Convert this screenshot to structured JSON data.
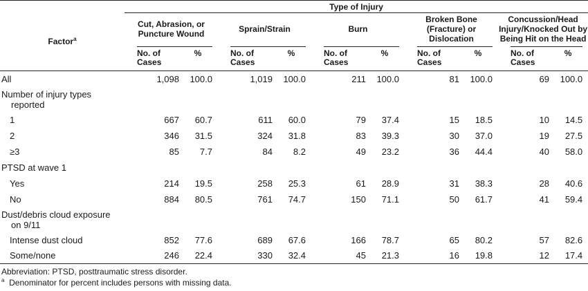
{
  "header": {
    "spanner": "Type of Injury",
    "factor_label": "Factor",
    "factor_note": "a",
    "groups": [
      {
        "line1": "Cut, Abrasion, or",
        "line2": "Puncture Wound"
      },
      {
        "line1": "Sprain/Strain",
        "line2": ""
      },
      {
        "line1": "Burn",
        "line2": ""
      },
      {
        "line1": "Broken Bone",
        "line2": "(Fracture) or",
        "line3": "Dislocation"
      },
      {
        "line1": "Concussion/Head",
        "line2": "Injury/Knocked Out by",
        "line3": "Being Hit on the Head"
      }
    ],
    "cases_line1": "No. of",
    "cases_line2": "Cases",
    "pct": "%"
  },
  "rows": [
    {
      "label": "All",
      "vals": [
        "1,098",
        "100.0",
        "1,019",
        "100.0",
        "211",
        "100.0",
        "81",
        "100.0",
        "69",
        "100.0"
      ]
    },
    {
      "label": "Number of injury types",
      "label2": "reported",
      "section": true
    },
    {
      "label": "1",
      "vals": [
        "667",
        "60.7",
        "611",
        "60.0",
        "79",
        "37.4",
        "15",
        "18.5",
        "10",
        "14.5"
      ]
    },
    {
      "label": "2",
      "vals": [
        "346",
        "31.5",
        "324",
        "31.8",
        "83",
        "39.3",
        "30",
        "37.0",
        "19",
        "27.5"
      ]
    },
    {
      "label": "≥3",
      "vals": [
        "85",
        "7.7",
        "84",
        "8.2",
        "49",
        "23.2",
        "36",
        "44.4",
        "40",
        "58.0"
      ]
    },
    {
      "label": "PTSD at wave 1",
      "section": true
    },
    {
      "label": "Yes",
      "vals": [
        "214",
        "19.5",
        "258",
        "25.3",
        "61",
        "28.9",
        "31",
        "38.3",
        "28",
        "40.6"
      ]
    },
    {
      "label": "No",
      "vals": [
        "884",
        "80.5",
        "761",
        "74.7",
        "150",
        "71.1",
        "50",
        "61.7",
        "41",
        "59.4"
      ]
    },
    {
      "label": "Dust/debris cloud exposure",
      "label2": "on 9/11",
      "section": true
    },
    {
      "label": "Intense dust cloud",
      "vals": [
        "852",
        "77.6",
        "689",
        "67.6",
        "166",
        "78.7",
        "65",
        "80.2",
        "57",
        "82.6"
      ]
    },
    {
      "label": "Some/none",
      "vals": [
        "246",
        "22.4",
        "330",
        "32.4",
        "45",
        "21.3",
        "16",
        "19.8",
        "12",
        "17.4"
      ]
    }
  ],
  "footnotes": {
    "abbreviation": "Abbreviation: PTSD, posttraumatic stress disorder.",
    "note_mark": "a",
    "note_text": "Denominator for percent includes persons with missing data."
  }
}
